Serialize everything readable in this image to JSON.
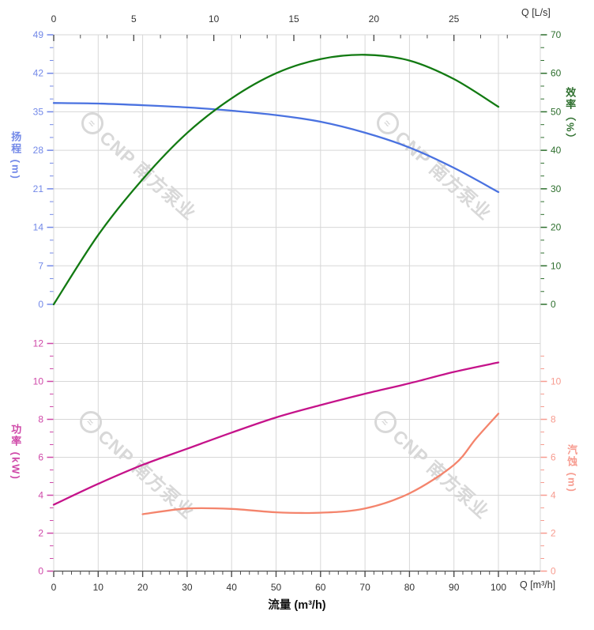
{
  "watermark": {
    "brand": "CNP 南方泵业"
  },
  "labels": {
    "flow_axis_title": "流量 (m³/h)",
    "flow_unit_bottom": "Q [m³/h]",
    "flow_unit_top": "Q [L/s]",
    "head_axis_title": "扬程 (m)",
    "efficiency_axis_title": "效率（%）",
    "power_axis_title": "功率 (kW)",
    "npsh_axis_title": "汽蚀 (m)"
  },
  "colors": {
    "head_curve": "#4a72e0",
    "head_label": "#7288e8",
    "efficiency_curve": "#127a12",
    "efficiency_label": "#2e6f2e",
    "power_curve": "#c5138a",
    "power_label": "#cf48a8",
    "npsh_curve": "#f4846c",
    "npsh_label": "#f79c90",
    "grid": "#d7d7d7",
    "axis_line": "#4d4d4d",
    "tick_text": "#333333",
    "watermark": "#d8d8d8"
  },
  "chart_data": {
    "type": "line",
    "title": "",
    "x_axis": {
      "bottom_unit": "m³/h",
      "bottom_label": "流量 (m³/h)",
      "bottom_major_ticks": [
        0,
        10,
        20,
        30,
        40,
        50,
        60,
        70,
        80,
        90,
        100
      ],
      "bottom_minor_step": 2,
      "bottom_range": [
        0,
        109.4
      ],
      "top_unit": "L/s",
      "top_major_ticks": [
        0,
        5,
        10,
        15,
        20,
        25
      ],
      "top_minor_step": 1.6667,
      "top_range": [
        0,
        30.4
      ],
      "conversion_Ls_at_100_m3h": 27.78,
      "grid": true
    },
    "panels": [
      {
        "id": "head-efficiency",
        "left_axis": {
          "title": "扬程 (m)",
          "unit": "m",
          "min": 0,
          "max": 49,
          "ticks": [
            0,
            7,
            14,
            21,
            28,
            35,
            42,
            49
          ],
          "minor_step": 2.3333
        },
        "right_axis": {
          "title": "效率（%）",
          "unit": "%",
          "min": 0,
          "max": 70,
          "ticks": [
            0,
            10,
            20,
            30,
            40,
            50,
            60,
            70
          ],
          "minor_step": 3.3333
        },
        "series": [
          {
            "name": "扬程",
            "axis": "left",
            "color_key": "head_curve",
            "x": [
              0,
              10,
              20,
              30,
              40,
              50,
              60,
              70,
              80,
              90,
              100
            ],
            "y": [
              36.6,
              36.5,
              36.2,
              35.8,
              35.2,
              34.4,
              33.2,
              31.2,
              28.5,
              24.8,
              20.4
            ]
          },
          {
            "name": "效率",
            "axis": "right",
            "color_key": "efficiency_curve",
            "x": [
              0,
              10,
              20,
              30,
              40,
              50,
              60,
              70,
              80,
              90,
              100
            ],
            "y": [
              0,
              18,
              32.5,
              44.5,
              53.5,
              60,
              63.7,
              64.8,
              63.3,
              58.5,
              51.3
            ]
          }
        ]
      },
      {
        "id": "power-npsh",
        "left_axis": {
          "title": "功率 (kW)",
          "unit": "kW",
          "min": 0,
          "max": 12,
          "ticks": [
            0,
            2,
            4,
            6,
            8,
            10,
            12
          ],
          "minor_step": 0.6667
        },
        "right_axis": {
          "title": "汽蚀 (m)",
          "unit": "m",
          "min": 0,
          "max": 12,
          "ticks": [
            0,
            2,
            4,
            6,
            8,
            10
          ],
          "minor_step": 0.6667
        },
        "series": [
          {
            "name": "功率",
            "axis": "left",
            "color_key": "power_curve",
            "x": [
              0,
              10,
              20,
              30,
              40,
              50,
              60,
              70,
              80,
              90,
              100
            ],
            "y": [
              3.5,
              4.6,
              5.6,
              6.45,
              7.3,
              8.1,
              8.75,
              9.35,
              9.9,
              10.5,
              11.0
            ]
          },
          {
            "name": "汽蚀",
            "axis": "right",
            "color_key": "npsh_curve",
            "x": [
              20,
              30,
              40,
              50,
              60,
              70,
              80,
              90,
              95,
              100
            ],
            "y": [
              3.0,
              3.3,
              3.28,
              3.1,
              3.08,
              3.3,
              4.1,
              5.6,
              7.0,
              8.3
            ]
          }
        ]
      }
    ]
  }
}
